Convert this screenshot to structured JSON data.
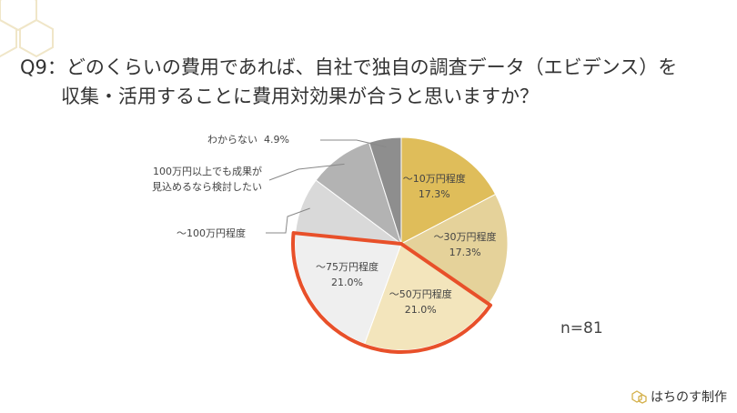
{
  "chart_data": {
    "type": "pie",
    "title": "Q9：どのくらいの費用であれば、自社で独自の調査データ（エビデンス）を",
    "subtitle": "収集・活用することに費用対効果が合うと思いますか？",
    "categories": [
      "～10万円程度",
      "～30万円程度",
      "～50万円程度",
      "～75万円程度",
      "～100万円程度",
      "100万円以上でも成果が\n見込めるなら検討したい",
      "わからない"
    ],
    "values": [
      17.3,
      17.3,
      21.0,
      21.0,
      8.6,
      9.9,
      4.9
    ],
    "value_labels": [
      "17.3%",
      "17.3%",
      "21.0%",
      "21.0%",
      null,
      null,
      "4.9%"
    ],
    "colors": [
      "#dfbd5a",
      "#e5d29a",
      "#f3e5bc",
      "#efefef",
      "#d9d9d9",
      "#b3b3b3",
      "#8e8e8e"
    ],
    "highlight_color": "#e8502a",
    "annotation": "n=81",
    "footer": "はちのす制作"
  }
}
